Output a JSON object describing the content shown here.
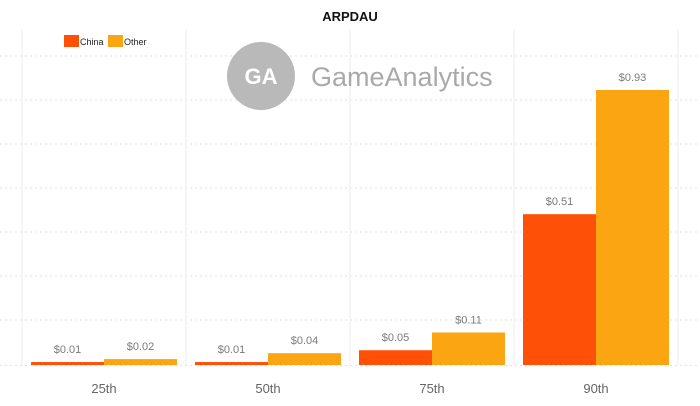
{
  "watermark": {
    "brand": "GameAnalytics",
    "logo_letters": "GA",
    "logo_color": "#b9b9b9"
  },
  "chart_data": {
    "type": "bar",
    "title": "ARPDAU",
    "categories": [
      "25th",
      "50th",
      "75th",
      "90th"
    ],
    "series": [
      {
        "name": "China",
        "color": "#ff5007",
        "values": [
          0.01,
          0.01,
          0.05,
          0.51
        ],
        "labels": [
          "$0.01",
          "$0.01",
          "$0.05",
          "$0.51"
        ]
      },
      {
        "name": "Other",
        "color": "#fca512",
        "values": [
          0.02,
          0.04,
          0.11,
          0.93
        ],
        "labels": [
          "$0.02",
          "$0.04",
          "$0.11",
          "$0.93"
        ]
      }
    ],
    "ylim": [
      0,
      1.0
    ],
    "xlabel": "",
    "ylabel": "",
    "grid": true,
    "legend_position": "top-left"
  }
}
